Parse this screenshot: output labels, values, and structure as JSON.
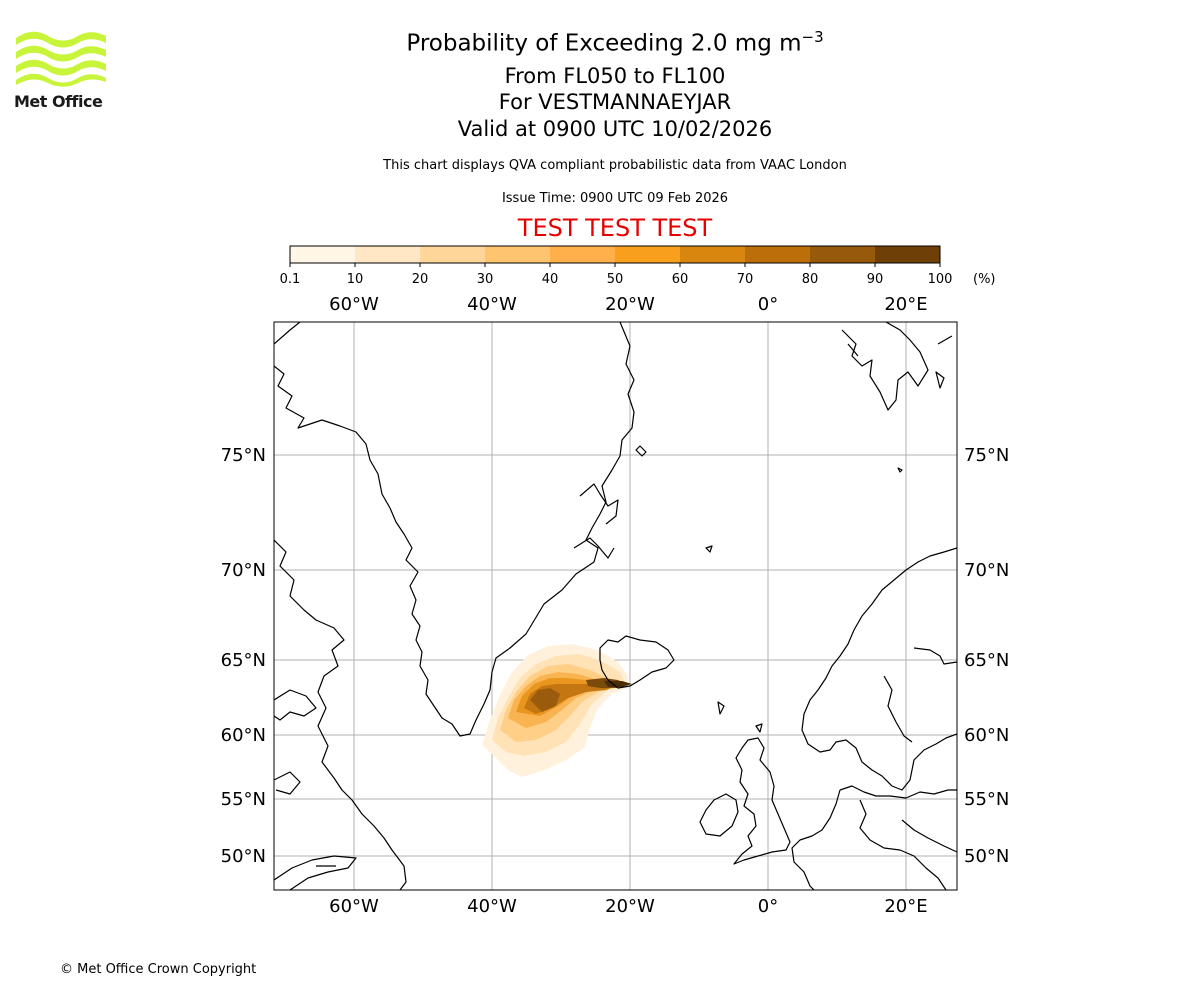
{
  "logo": {
    "name": "Met Office"
  },
  "title": {
    "main_prefix": "Probability of Exceeding 2.0 mg m",
    "main_exponent": "−3",
    "levels": "From FL050 to FL100",
    "location": "For VESTMANNAEYJAR",
    "valid": "Valid at 0900 UTC 10/02/2026"
  },
  "subtitle": "This chart displays QVA compliant probabilistic data from VAAC London",
  "issue_time": "Issue Time: 0900 UTC 09 Feb 2026",
  "test_banner": "TEST TEST TEST",
  "colorbar": {
    "ticks": [
      "0.1",
      "10",
      "20",
      "30",
      "40",
      "50",
      "60",
      "70",
      "80",
      "90",
      "100"
    ],
    "unit": "(%)",
    "colors": [
      "#fff6e5",
      "#ffe6c4",
      "#ffd699",
      "#ffc470",
      "#ffb04a",
      "#f8a01e",
      "#d9860f",
      "#bb6e0a",
      "#975a0a",
      "#6e4008"
    ]
  },
  "map": {
    "lon_labels": [
      "60°W",
      "40°W",
      "20°W",
      "0°",
      "20°E"
    ],
    "lat_labels": [
      "75°N",
      "70°N",
      "65°N",
      "60°N",
      "55°N",
      "50°N"
    ],
    "grid_color": "#b0b0b0",
    "coast_color": "#000000"
  },
  "copyright": "© Met Office Crown Copyright"
}
